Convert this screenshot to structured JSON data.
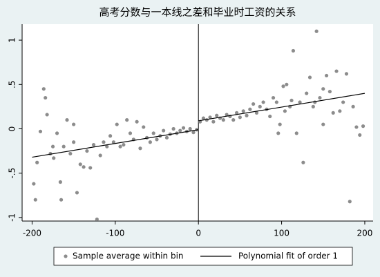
{
  "chart_data": {
    "type": "scatter",
    "title": "高考分数与一本线之差和毕业时工资的关系",
    "xlim": [
      -212,
      210
    ],
    "ylim": [
      -1.04,
      1.18
    ],
    "xticks": [
      -200,
      -100,
      0,
      100,
      200
    ],
    "yticks": [
      {
        "value": -1,
        "label": "-1"
      },
      {
        "value": -0.5,
        "label": "-.5"
      },
      0,
      {
        "value": 0.5,
        "label": ".5"
      },
      1
    ],
    "vline": 0,
    "legend": "bottom",
    "series": [
      {
        "name": "Sample average within bin",
        "color": "#8c8c8c",
        "kind": "scatter",
        "x": [
          -198,
          -196,
          -194,
          -190,
          -186,
          -184,
          -182,
          -178,
          -175,
          -174,
          -170,
          -166,
          -165,
          -162,
          -158,
          -154,
          -150,
          -150,
          -146,
          -142,
          -138,
          -134,
          -130,
          -126,
          -122,
          -118,
          -114,
          -110,
          -106,
          -102,
          -98,
          -94,
          -90,
          -86,
          -82,
          -78,
          -74,
          -70,
          -66,
          -62,
          -58,
          -54,
          -50,
          -46,
          -42,
          -38,
          -34,
          -30,
          -26,
          -22,
          -18,
          -14,
          -10,
          -6,
          -2,
          2,
          6,
          10,
          14,
          18,
          22,
          26,
          30,
          34,
          38,
          42,
          46,
          50,
          54,
          58,
          62,
          66,
          70,
          74,
          78,
          82,
          86,
          90,
          94,
          96,
          98,
          102,
          104,
          106,
          110,
          112,
          114,
          118,
          122,
          126,
          130,
          134,
          138,
          140,
          142,
          146,
          150,
          150,
          154,
          158,
          162,
          166,
          170,
          174,
          178,
          182,
          186,
          190,
          194,
          198
        ],
        "values": [
          -0.62,
          -0.8,
          -0.38,
          -0.03,
          0.45,
          0.35,
          0.16,
          -0.28,
          -0.2,
          -0.33,
          -0.05,
          -0.6,
          -0.8,
          -0.2,
          0.1,
          -0.28,
          -0.15,
          0.05,
          -0.72,
          -0.4,
          -0.43,
          -0.25,
          -0.44,
          -0.18,
          -1.02,
          -0.3,
          -0.15,
          -0.2,
          -0.08,
          -0.15,
          0.05,
          -0.2,
          -0.18,
          0.1,
          -0.05,
          -0.12,
          0.08,
          -0.22,
          0.02,
          -0.1,
          -0.15,
          -0.05,
          -0.12,
          -0.08,
          -0.02,
          -0.1,
          -0.06,
          0.0,
          -0.05,
          -0.02,
          0.01,
          -0.03,
          0.0,
          -0.04,
          -0.01,
          0.08,
          0.12,
          0.1,
          0.13,
          0.08,
          0.15,
          0.12,
          0.1,
          0.16,
          0.14,
          0.1,
          0.18,
          0.13,
          0.2,
          0.15,
          0.22,
          0.28,
          0.18,
          0.25,
          0.3,
          0.22,
          0.14,
          0.35,
          0.3,
          -0.05,
          0.05,
          0.48,
          0.2,
          0.5,
          0.25,
          0.32,
          0.88,
          -0.05,
          0.3,
          -0.38,
          0.4,
          0.58,
          0.25,
          0.3,
          1.1,
          0.35,
          0.05,
          0.45,
          0.6,
          0.42,
          0.18,
          0.65,
          0.2,
          0.3,
          0.62,
          -0.82,
          0.25,
          0.02,
          -0.07,
          0.03
        ]
      },
      {
        "name": "Polynomial fit of order 1",
        "color": "#000000",
        "kind": "line",
        "x": [
          -200,
          0,
          0,
          0,
          200
        ],
        "values": [
          -0.32,
          -0.01,
          null,
          0.09,
          0.4
        ]
      }
    ]
  }
}
